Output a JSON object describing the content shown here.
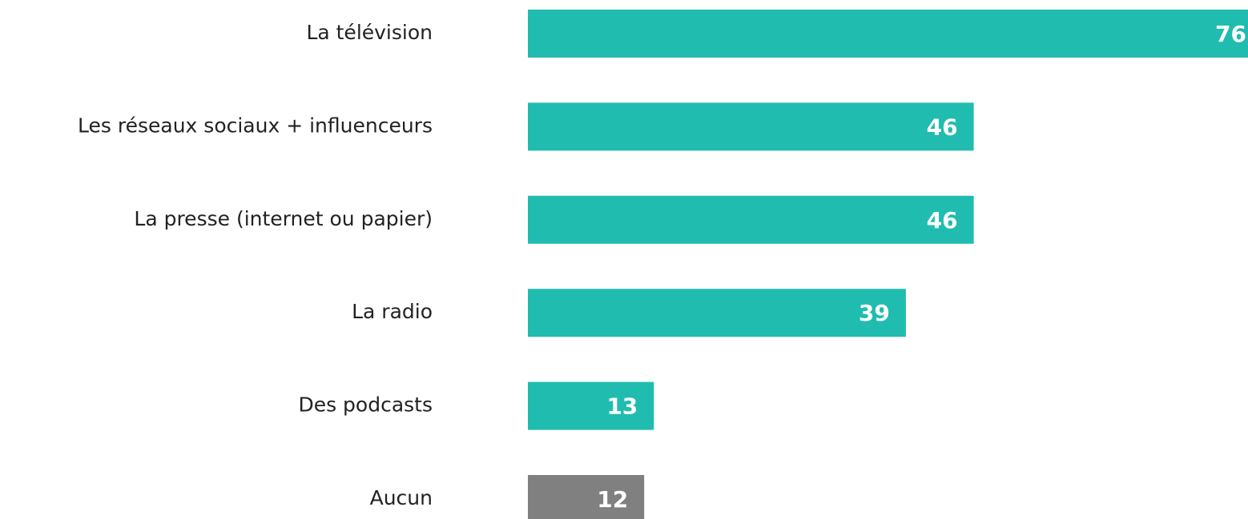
{
  "chart_data": {
    "type": "hbar",
    "categories": [
      "La télévision",
      "Les réseaux sociaux + influenceurs",
      "La presse (internet ou papier)",
      "La radio",
      "Des podcasts",
      "Aucun"
    ],
    "values": [
      76,
      46,
      46,
      39,
      13,
      12
    ],
    "colors": [
      "#21bcb0",
      "#21bcb0",
      "#21bcb0",
      "#21bcb0",
      "#21bcb0",
      "#808080"
    ]
  }
}
